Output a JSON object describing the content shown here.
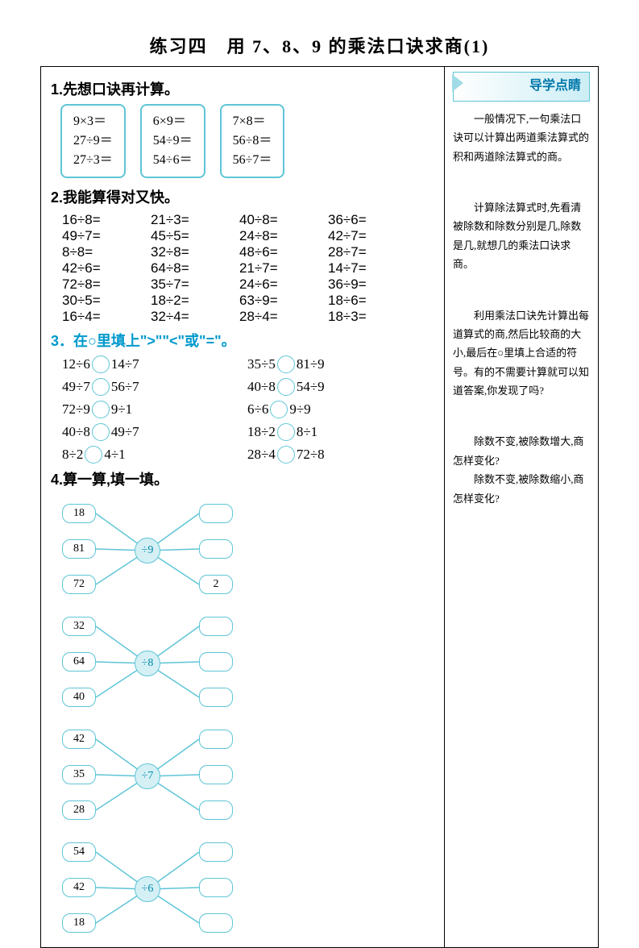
{
  "title": "练习四　用 7、8、9 的乘法口诀求商(1)",
  "q1": {
    "title": "1.先想口诀再计算。",
    "boxes": [
      [
        "9×3＝",
        "27÷9＝",
        "27÷3＝"
      ],
      [
        "6×9＝",
        "54÷9＝",
        "54÷6＝"
      ],
      [
        "7×8＝",
        "56÷8＝",
        "56÷7＝"
      ]
    ]
  },
  "q2": {
    "title": "2.我能算得对又快。",
    "rows": [
      [
        "16÷8=",
        "21÷3=",
        "40÷8=",
        "36÷6="
      ],
      [
        "49÷7=",
        "45÷5=",
        "24÷8=",
        "42÷7="
      ],
      [
        "8÷8=",
        "32÷8=",
        "48÷6=",
        "28÷7="
      ],
      [
        "42÷6=",
        "64÷8=",
        "21÷7=",
        "14÷7="
      ],
      [
        "72÷8=",
        "35÷7=",
        "24÷6=",
        "36÷9="
      ],
      [
        "30÷5=",
        "18÷2=",
        "63÷9=",
        "18÷6="
      ],
      [
        "16÷4=",
        "32÷4=",
        "28÷4=",
        "18÷3="
      ]
    ]
  },
  "q3": {
    "title": "3．在○里填上\">\"\"<\"或\"=\"。",
    "rows": [
      [
        "12÷6",
        "14÷7",
        "35÷5",
        "81÷9"
      ],
      [
        "49÷7",
        "56÷7",
        "40÷8",
        "54÷9"
      ],
      [
        "72÷9",
        "9÷1",
        "6÷6",
        "9÷9"
      ],
      [
        "40÷8",
        "49÷7",
        "18÷2",
        "8÷1"
      ],
      [
        "8÷2",
        "4÷1",
        "28÷4",
        "72÷8"
      ]
    ]
  },
  "q4": {
    "title": "4.算一算,填一填。",
    "spiders": [
      {
        "op": "÷9",
        "left": [
          "18",
          "81",
          "72"
        ],
        "right": [
          "",
          "",
          "2"
        ]
      },
      {
        "op": "÷8",
        "left": [
          "32",
          "64",
          "40"
        ],
        "right": [
          "",
          "",
          ""
        ]
      },
      {
        "op": "÷7",
        "left": [
          "42",
          "35",
          "28"
        ],
        "right": [
          "",
          "",
          ""
        ]
      },
      {
        "op": "÷6",
        "left": [
          "54",
          "42",
          "18"
        ],
        "right": [
          "",
          "",
          ""
        ]
      }
    ]
  },
  "guide": {
    "header": "导学点睛",
    "tips": [
      "一般情况下,一句乘法口诀可以计算出两道乘法算式的积和两道除法算式的商。",
      "计算除法算式时,先看清被除数和除数分别是几,除数是几,就想几的乘法口诀求商。",
      "利用乘法口诀先计算出每道算式的商,然后比较商的大小,最后在○里填上合适的符号。有的不需要计算就可以知道答案,你发现了吗?",
      "除数不变,被除数增大,商怎样变化?\n　　除数不变,被除数缩小,商怎样变化?"
    ]
  },
  "colors": {
    "accent": "#5ec5d6",
    "text_blue": "#0099cc"
  }
}
